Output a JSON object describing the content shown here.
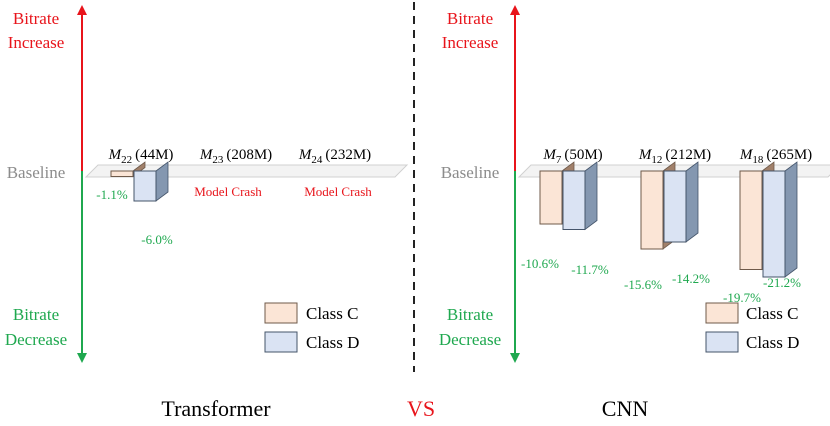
{
  "colors": {
    "increase": "#e8141b",
    "decrease": "#1fa84f",
    "baseline_text": "#8c8c8c",
    "class_c_fill": "#fbe5d6",
    "class_c_stroke": "#6f5a4a",
    "class_d_fill": "#dae3f3",
    "class_d_stroke": "#44546a",
    "crash": "#e8141b",
    "divider": "#222222",
    "vs": "#e8141b"
  },
  "labels": {
    "increase_1": "Bitrate",
    "increase_2": "Increase",
    "decrease_1": "Bitrate",
    "decrease_2": "Decrease",
    "baseline": "Baseline",
    "model_crash": "Model Crash",
    "vs": "VS"
  },
  "chart_data": [
    {
      "type": "bar",
      "title": "Transformer",
      "baseline_label": "Baseline",
      "series": [
        {
          "name": "Class C",
          "color": "#fbe5d6"
        },
        {
          "name": "Class D",
          "color": "#dae3f3"
        }
      ],
      "groups": [
        {
          "model": "M",
          "sub": "22",
          "params": "(44M)",
          "crashed": false,
          "values": [
            -1.1,
            -6.0
          ],
          "value_labels": [
            "-1.1%",
            "-6.0%"
          ]
        },
        {
          "model": "M",
          "sub": "23",
          "params": "(208M)",
          "crashed": true,
          "values": [],
          "value_labels": [],
          "crash_label": "Model Crash"
        },
        {
          "model": "M",
          "sub": "24",
          "params": "(232M)",
          "crashed": true,
          "values": [],
          "value_labels": [],
          "crash_label": "Model Crash"
        }
      ]
    },
    {
      "type": "bar",
      "title": "CNN",
      "baseline_label": "Baseline",
      "series": [
        {
          "name": "Class C",
          "color": "#fbe5d6"
        },
        {
          "name": "Class D",
          "color": "#dae3f3"
        }
      ],
      "groups": [
        {
          "model": "M",
          "sub": "7",
          "params": "(50M)",
          "crashed": false,
          "values": [
            -10.6,
            -11.7
          ],
          "value_labels": [
            "-10.6%",
            "-11.7%"
          ]
        },
        {
          "model": "M",
          "sub": "12",
          "params": "(212M)",
          "crashed": false,
          "values": [
            -15.6,
            -14.2
          ],
          "value_labels": [
            "-15.6%",
            "-14.2%"
          ]
        },
        {
          "model": "M",
          "sub": "18",
          "params": "(265M)",
          "crashed": false,
          "values": [
            -19.7,
            -21.2
          ],
          "value_labels": [
            "-19.7%",
            "-21.2%"
          ]
        }
      ]
    }
  ]
}
